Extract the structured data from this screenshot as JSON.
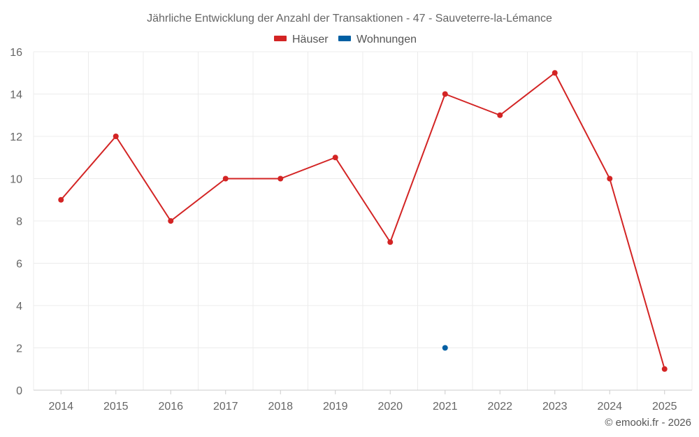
{
  "chart_data": {
    "type": "line",
    "title": "Jährliche Entwicklung der Anzahl der Transaktionen - 47 - Sauveterre-la-Lémance",
    "categories": [
      "2014",
      "2015",
      "2016",
      "2017",
      "2018",
      "2019",
      "2020",
      "2021",
      "2022",
      "2023",
      "2024",
      "2025"
    ],
    "series": [
      {
        "name": "Häuser",
        "color": "#d32424",
        "values": [
          9,
          12,
          8,
          10,
          10,
          11,
          7,
          14,
          13,
          15,
          10,
          1
        ]
      },
      {
        "name": "Wohnungen",
        "color": "#005fa3",
        "values": [
          null,
          null,
          null,
          null,
          null,
          null,
          null,
          2,
          null,
          null,
          null,
          null
        ]
      }
    ],
    "ylim": [
      0,
      16
    ],
    "yticks": [
      0,
      2,
      4,
      6,
      8,
      10,
      12,
      14,
      16
    ],
    "grid": true,
    "legend_position": "top-center"
  },
  "credit": "© emooki.fr - 2026"
}
